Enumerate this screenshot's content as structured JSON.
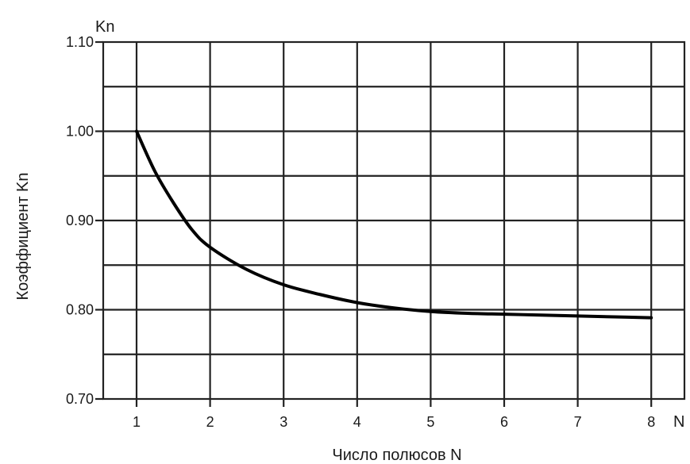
{
  "chart_data": {
    "type": "line",
    "title": "",
    "xlabel": "Число полюсов N",
    "ylabel": "Коэффициент Kn",
    "x_axis_unit_label": "N",
    "y_axis_unit_label": "Kn",
    "xlim": [
      0,
      8.5
    ],
    "ylim": [
      0.7,
      1.1
    ],
    "x_ticks": [
      "1",
      "2",
      "3",
      "4",
      "5",
      "6",
      "7",
      "8"
    ],
    "y_ticks": [
      "0.70",
      "0.80",
      "0.90",
      "1.00",
      "1.10"
    ],
    "grid": true,
    "series": [
      {
        "x": [
          1,
          1.25,
          1.5,
          1.75,
          2,
          2.5,
          3,
          3.5,
          4,
          4.5,
          5,
          5.5,
          6,
          6.5,
          7,
          7.5,
          8
        ],
        "y": [
          1.0,
          0.955,
          0.92,
          0.89,
          0.87,
          0.845,
          0.828,
          0.817,
          0.808,
          0.802,
          0.798,
          0.796,
          0.795,
          0.794,
          0.793,
          0.792,
          0.791
        ],
        "color": "#000000"
      }
    ]
  }
}
